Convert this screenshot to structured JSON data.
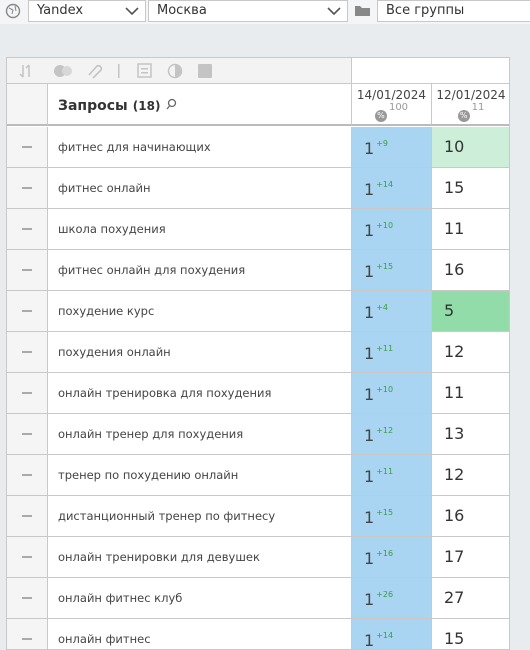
{
  "toolbar": {
    "engine": "Yandex",
    "region": "Москва",
    "group": "Все группы"
  },
  "table": {
    "header": {
      "title": "Запросы",
      "count": "(18)",
      "dates": [
        {
          "date": "14/01/2024",
          "value": "100"
        },
        {
          "date": "12/01/2024",
          "value": "11"
        }
      ]
    },
    "rows": [
      {
        "query": "фитнес для начинающих",
        "pos": 1,
        "delta": "+9",
        "prev": 10,
        "prev_color": "#cdeed9"
      },
      {
        "query": "фитнес онлайн",
        "pos": 1,
        "delta": "+14",
        "prev": 15
      },
      {
        "query": "школа похудения",
        "pos": 1,
        "delta": "+10",
        "prev": 11
      },
      {
        "query": "фитнес онлайн для похудения",
        "pos": 1,
        "delta": "+15",
        "prev": 16
      },
      {
        "query": "похудение курс",
        "pos": 1,
        "delta": "+4",
        "prev": 5,
        "prev_color": "#92dcaa"
      },
      {
        "query": "похудения онлайн",
        "pos": 1,
        "delta": "+11",
        "prev": 12
      },
      {
        "query": "онлайн тренировка для похудения",
        "pos": 1,
        "delta": "+10",
        "prev": 11
      },
      {
        "query": "онлайн тренер для похудения",
        "pos": 1,
        "delta": "+12",
        "prev": 13
      },
      {
        "query": "тренер по похудению онлайн",
        "pos": 1,
        "delta": "+11",
        "prev": 12
      },
      {
        "query": "дистанционный тренер по фитнесу",
        "pos": 1,
        "delta": "+15",
        "prev": 16
      },
      {
        "query": "онлайн тренировки для девушек",
        "pos": 1,
        "delta": "+16",
        "prev": 17
      },
      {
        "query": "онлайн фитнес клуб",
        "pos": 1,
        "delta": "+26",
        "prev": 27
      },
      {
        "query": "онлайн фитнес",
        "pos": 1,
        "delta": "+14",
        "prev": 15
      }
    ]
  }
}
